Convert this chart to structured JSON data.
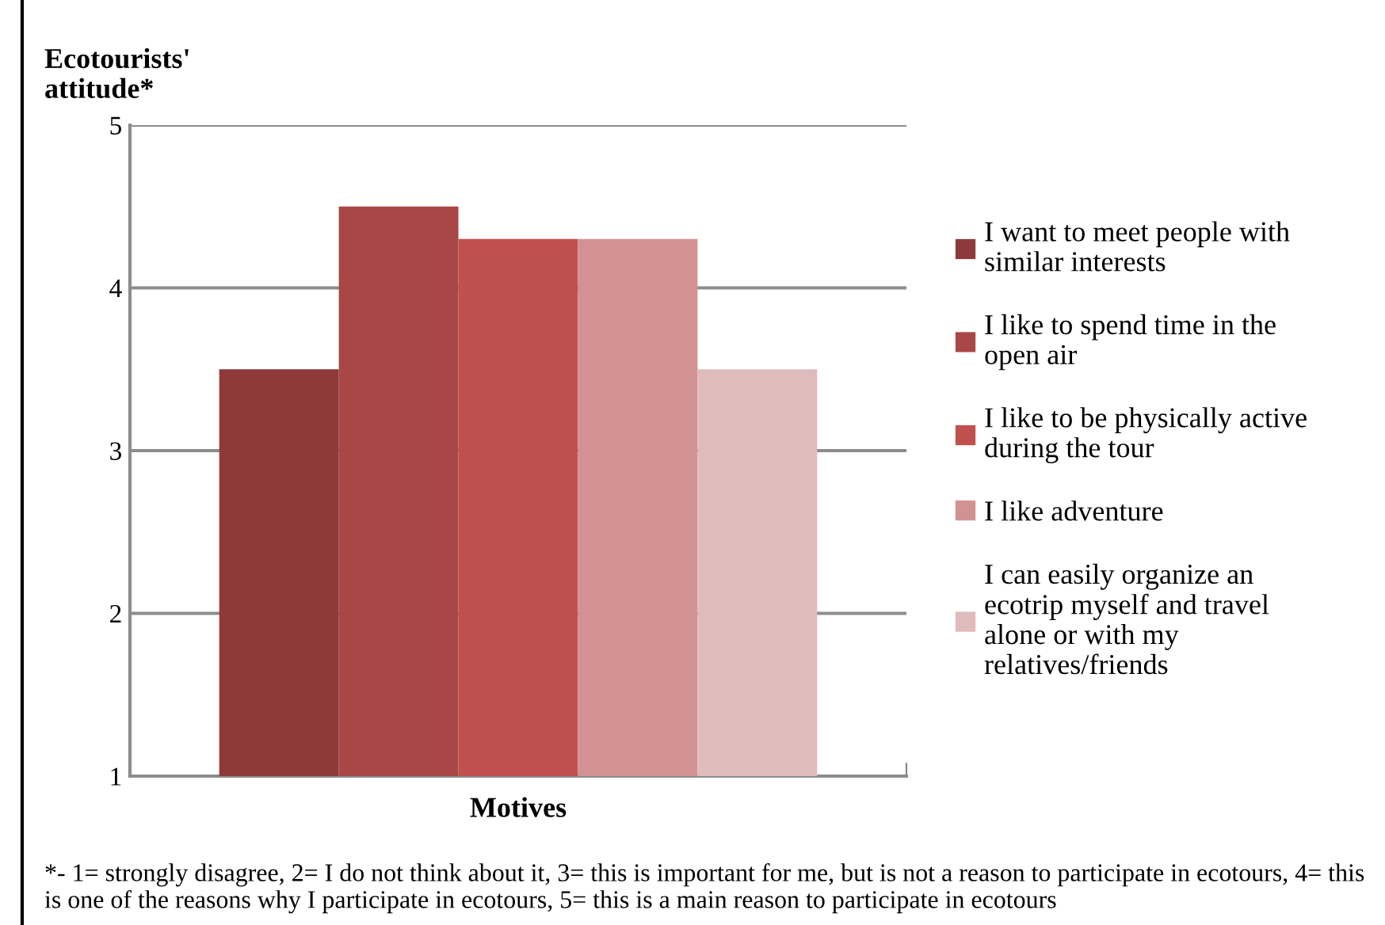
{
  "chart_data": {
    "type": "bar",
    "ylabel": "Ecotourists' attitude*",
    "xlabel": "Motives",
    "categories": [
      null
    ],
    "series": [
      {
        "name": "I want to meet people with similar interests",
        "color": "#8e3a3a",
        "values": [
          3.5
        ]
      },
      {
        "name": "I like to spend time in the open air",
        "color": "#a94746",
        "values": [
          4.5
        ]
      },
      {
        "name": "I like to be physically active during the tour",
        "color": "#c0504d",
        "values": [
          4.3
        ]
      },
      {
        "name": "I like adventure",
        "color": "#d39292",
        "values": [
          4.3
        ]
      },
      {
        "name": "I can easily organize an ecotrip myself and travel alone or with my relatives/friends",
        "color": "#e0bbbb",
        "values": [
          3.5
        ]
      }
    ],
    "ylim": [
      1,
      5
    ],
    "yticks": [
      1,
      2,
      3,
      4,
      5
    ],
    "grid": "y",
    "legend": "right",
    "annotations": [
      "*- 1= strongly disagree, 2= I do not think about it, 3= this is important for me, but is not a reason to participate in ecotours, 4= this is one of the reasons why I participate in ecotours, 5= this is a main reason to participate in ecotours"
    ]
  }
}
